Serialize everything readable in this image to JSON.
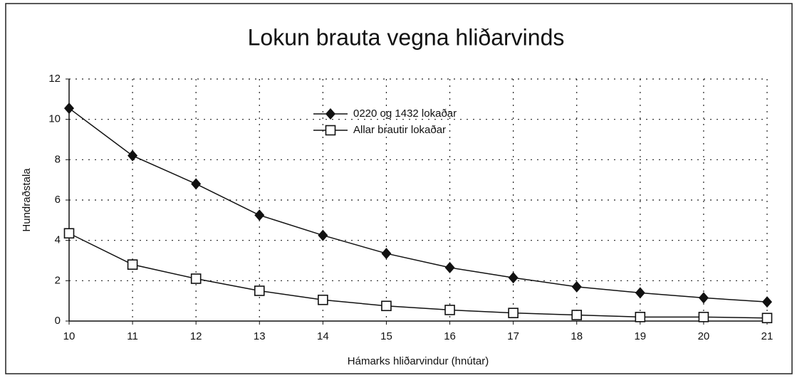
{
  "chart_data": {
    "type": "line",
    "title": "Lokun brauta vegna hliðarvinds",
    "x_label": "Hámarks hliðarvindur (hnútar)",
    "y_label": "Hundraðstala",
    "x": [
      10,
      11,
      12,
      13,
      14,
      15,
      16,
      17,
      18,
      19,
      20,
      21
    ],
    "series": [
      {
        "name": "0220 og 1432 lokaðar",
        "color": "#111111",
        "marker": "diamond",
        "values": [
          10.55,
          8.2,
          6.8,
          5.25,
          4.25,
          3.35,
          2.65,
          2.15,
          1.7,
          1.4,
          1.15,
          0.95
        ]
      },
      {
        "name": "Allar brautir lokaðar",
        "color": "#111111",
        "marker": "square",
        "values": [
          4.35,
          2.8,
          2.1,
          1.5,
          1.05,
          0.75,
          0.55,
          0.4,
          0.3,
          0.2,
          0.2,
          0.15
        ]
      }
    ],
    "xlim": [
      10,
      21
    ],
    "xticks": [
      10,
      11,
      12,
      13,
      14,
      15,
      16,
      17,
      18,
      19,
      20,
      21
    ],
    "ylim": [
      0,
      12
    ],
    "yticks": [
      0,
      2,
      4,
      6,
      8,
      10,
      12
    ],
    "grid": true
  }
}
